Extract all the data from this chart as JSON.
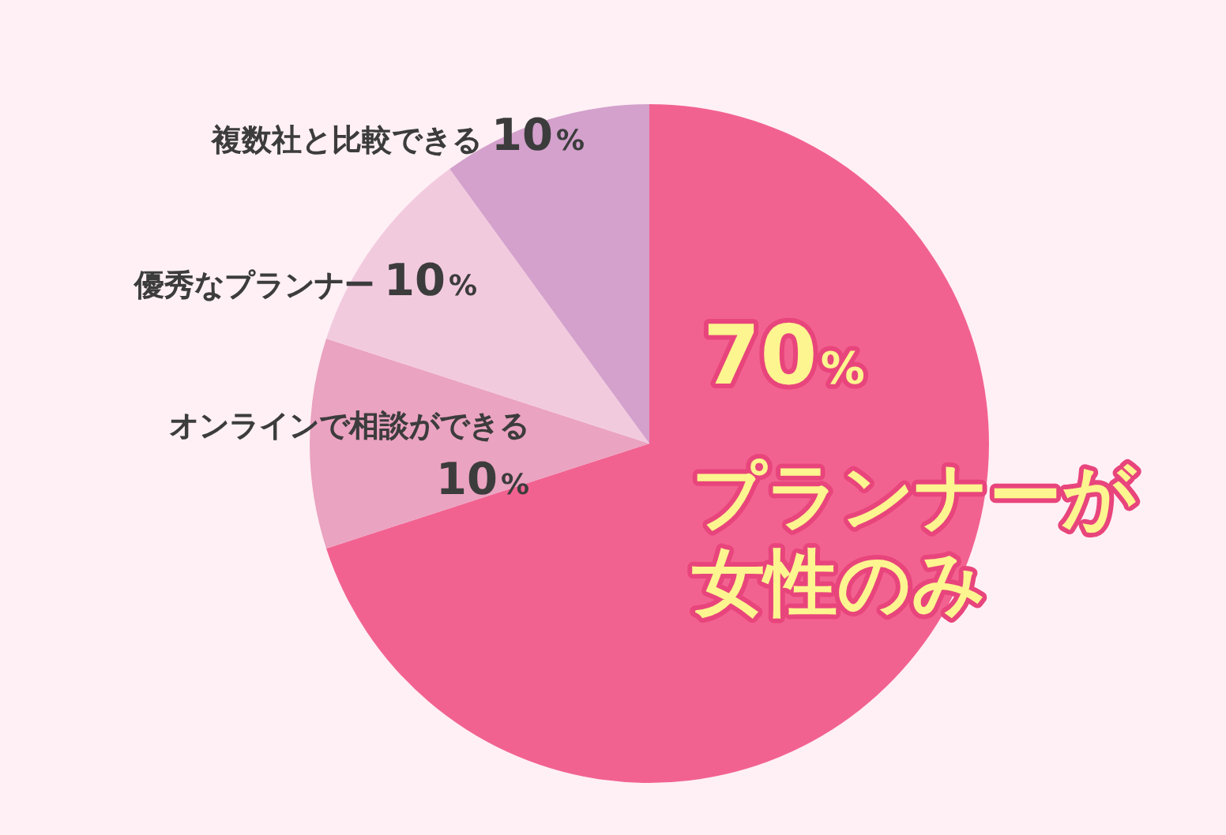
{
  "chart_data": {
    "type": "pie",
    "categories": [
      "プランナーが女性のみ",
      "オンラインで相談ができる",
      "優秀なプランナー",
      "複数社と比較できる"
    ],
    "values": [
      70,
      10,
      10,
      10
    ],
    "colors": [
      "#f26291",
      "#eaa3c0",
      "#f2cade",
      "#d3a1cc"
    ],
    "value_labels": [
      "70%",
      "10%",
      "10%",
      "10%"
    ]
  }
}
